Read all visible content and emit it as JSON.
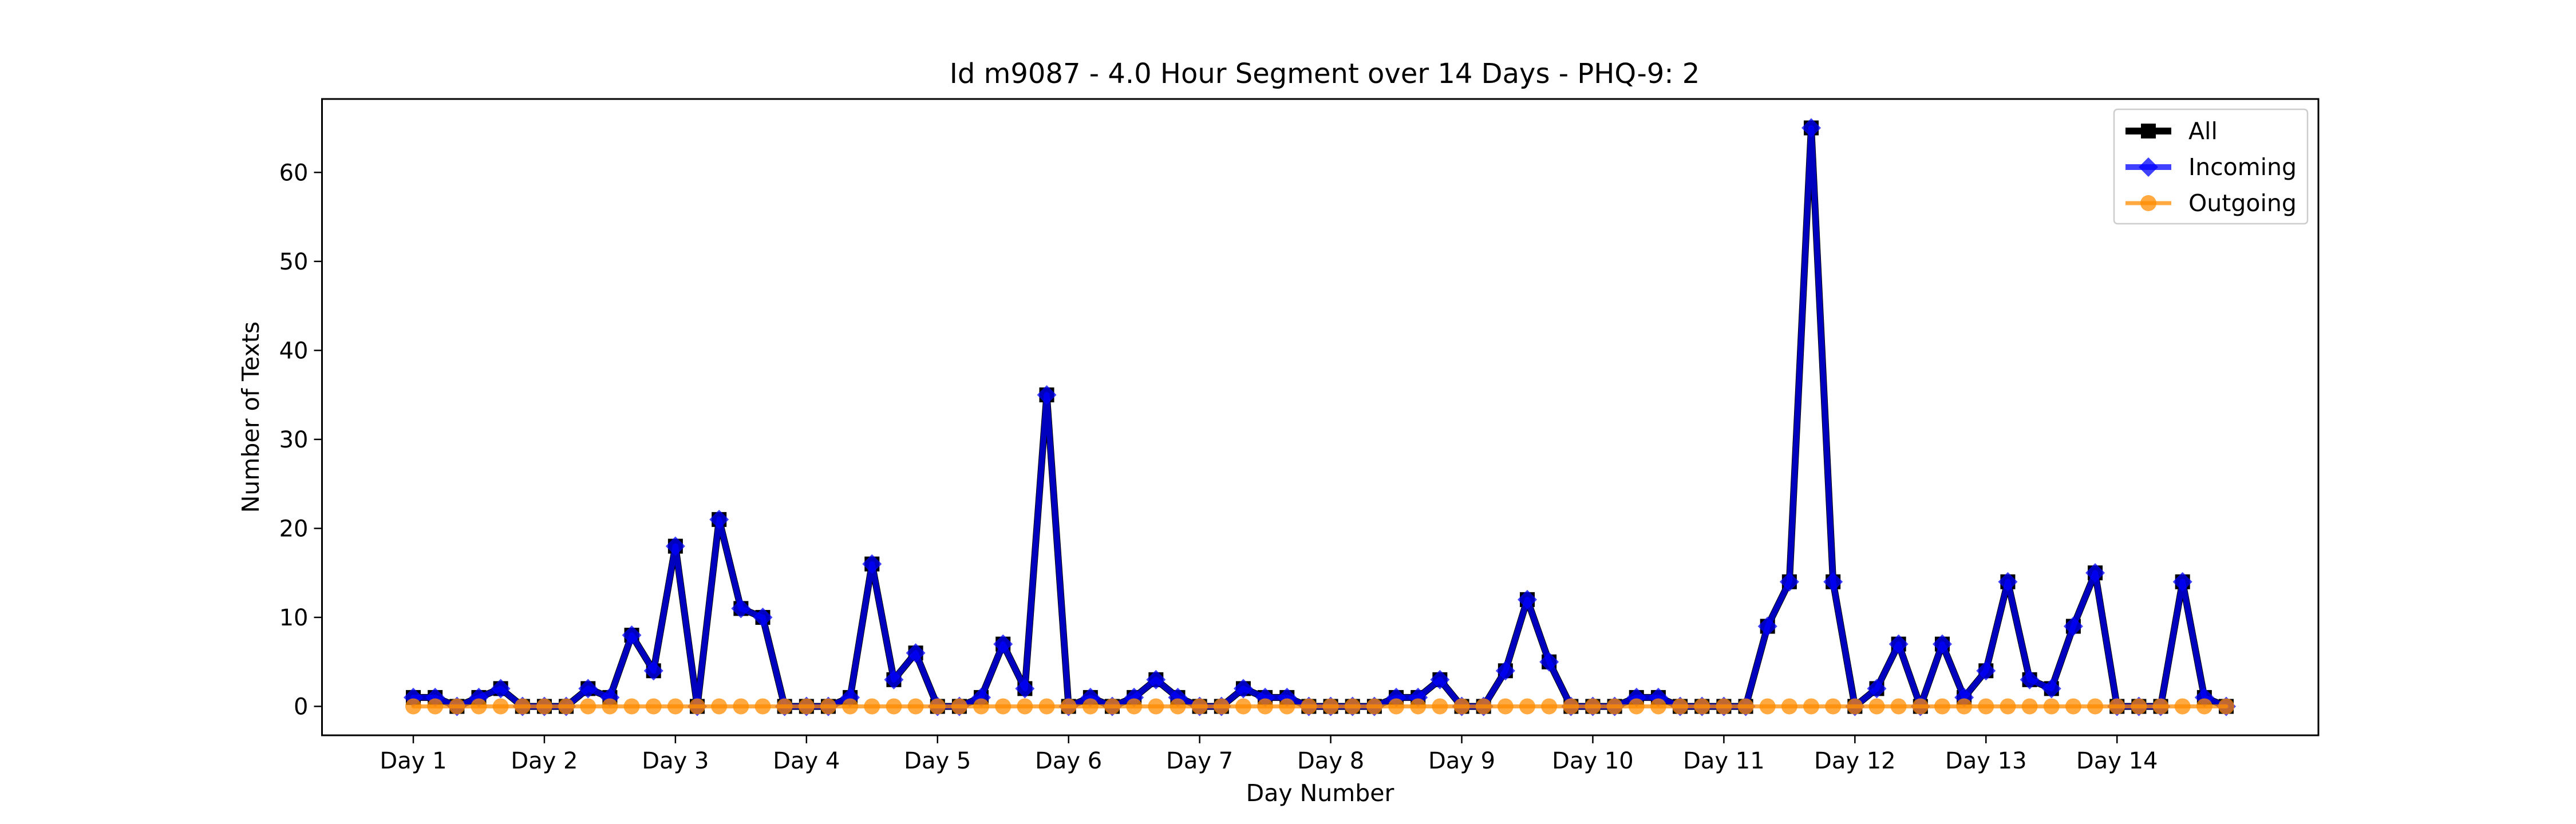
{
  "chart_data": {
    "type": "line",
    "title": "Id m9087 - 4.0 Hour Segment over 14 Days - PHQ-9: 2",
    "xlabel": "Day Number",
    "ylabel": "Number of Texts",
    "x_tick_labels": [
      "Day 1",
      "Day 2",
      "Day 3",
      "Day 4",
      "Day 5",
      "Day 6",
      "Day 7",
      "Day 8",
      "Day 9",
      "Day 10",
      "Day 11",
      "Day 12",
      "Day 13",
      "Day 14"
    ],
    "segments_per_day": 6,
    "y_ticks": [
      0,
      10,
      20,
      30,
      40,
      50,
      60
    ],
    "ylim": [
      -3.25,
      68.25
    ],
    "grid": false,
    "legend_position": "upper right",
    "series": [
      {
        "name": "All",
        "color": "#000000",
        "marker": "square",
        "values": [
          1,
          1,
          0,
          1,
          2,
          0,
          0,
          0,
          2,
          1,
          8,
          4,
          18,
          0,
          21,
          11,
          10,
          0,
          0,
          0,
          1,
          16,
          3,
          6,
          0,
          0,
          1,
          7,
          2,
          35,
          0,
          1,
          0,
          1,
          3,
          1,
          0,
          0,
          2,
          1,
          1,
          0,
          0,
          0,
          0,
          1,
          1,
          3,
          0,
          0,
          4,
          12,
          5,
          0,
          0,
          0,
          1,
          1,
          0,
          0,
          0,
          0,
          9,
          14,
          65,
          14,
          0,
          2,
          7,
          0,
          7,
          1,
          4,
          14,
          3,
          2,
          9,
          15,
          0,
          0,
          0,
          14,
          1,
          0
        ]
      },
      {
        "name": "Incoming",
        "color": "#0000ff",
        "marker": "diamond",
        "values": [
          1,
          1,
          0,
          1,
          2,
          0,
          0,
          0,
          2,
          1,
          8,
          4,
          18,
          0,
          21,
          11,
          10,
          0,
          0,
          0,
          1,
          16,
          3,
          6,
          0,
          0,
          1,
          7,
          2,
          35,
          0,
          1,
          0,
          1,
          3,
          1,
          0,
          0,
          2,
          1,
          1,
          0,
          0,
          0,
          0,
          1,
          1,
          3,
          0,
          0,
          4,
          12,
          5,
          0,
          0,
          0,
          1,
          1,
          0,
          0,
          0,
          0,
          9,
          14,
          65,
          14,
          0,
          2,
          7,
          0,
          7,
          1,
          4,
          14,
          3,
          2,
          9,
          15,
          0,
          0,
          0,
          14,
          1,
          0
        ]
      },
      {
        "name": "Outgoing",
        "color": "#ff8c00",
        "marker": "circle",
        "values": [
          0,
          0,
          0,
          0,
          0,
          0,
          0,
          0,
          0,
          0,
          0,
          0,
          0,
          0,
          0,
          0,
          0,
          0,
          0,
          0,
          0,
          0,
          0,
          0,
          0,
          0,
          0,
          0,
          0,
          0,
          0,
          0,
          0,
          0,
          0,
          0,
          0,
          0,
          0,
          0,
          0,
          0,
          0,
          0,
          0,
          0,
          0,
          0,
          0,
          0,
          0,
          0,
          0,
          0,
          0,
          0,
          0,
          0,
          0,
          0,
          0,
          0,
          0,
          0,
          0,
          0,
          0,
          0,
          0,
          0,
          0,
          0,
          0,
          0,
          0,
          0,
          0,
          0,
          0,
          0,
          0,
          0,
          0,
          0
        ]
      }
    ]
  }
}
